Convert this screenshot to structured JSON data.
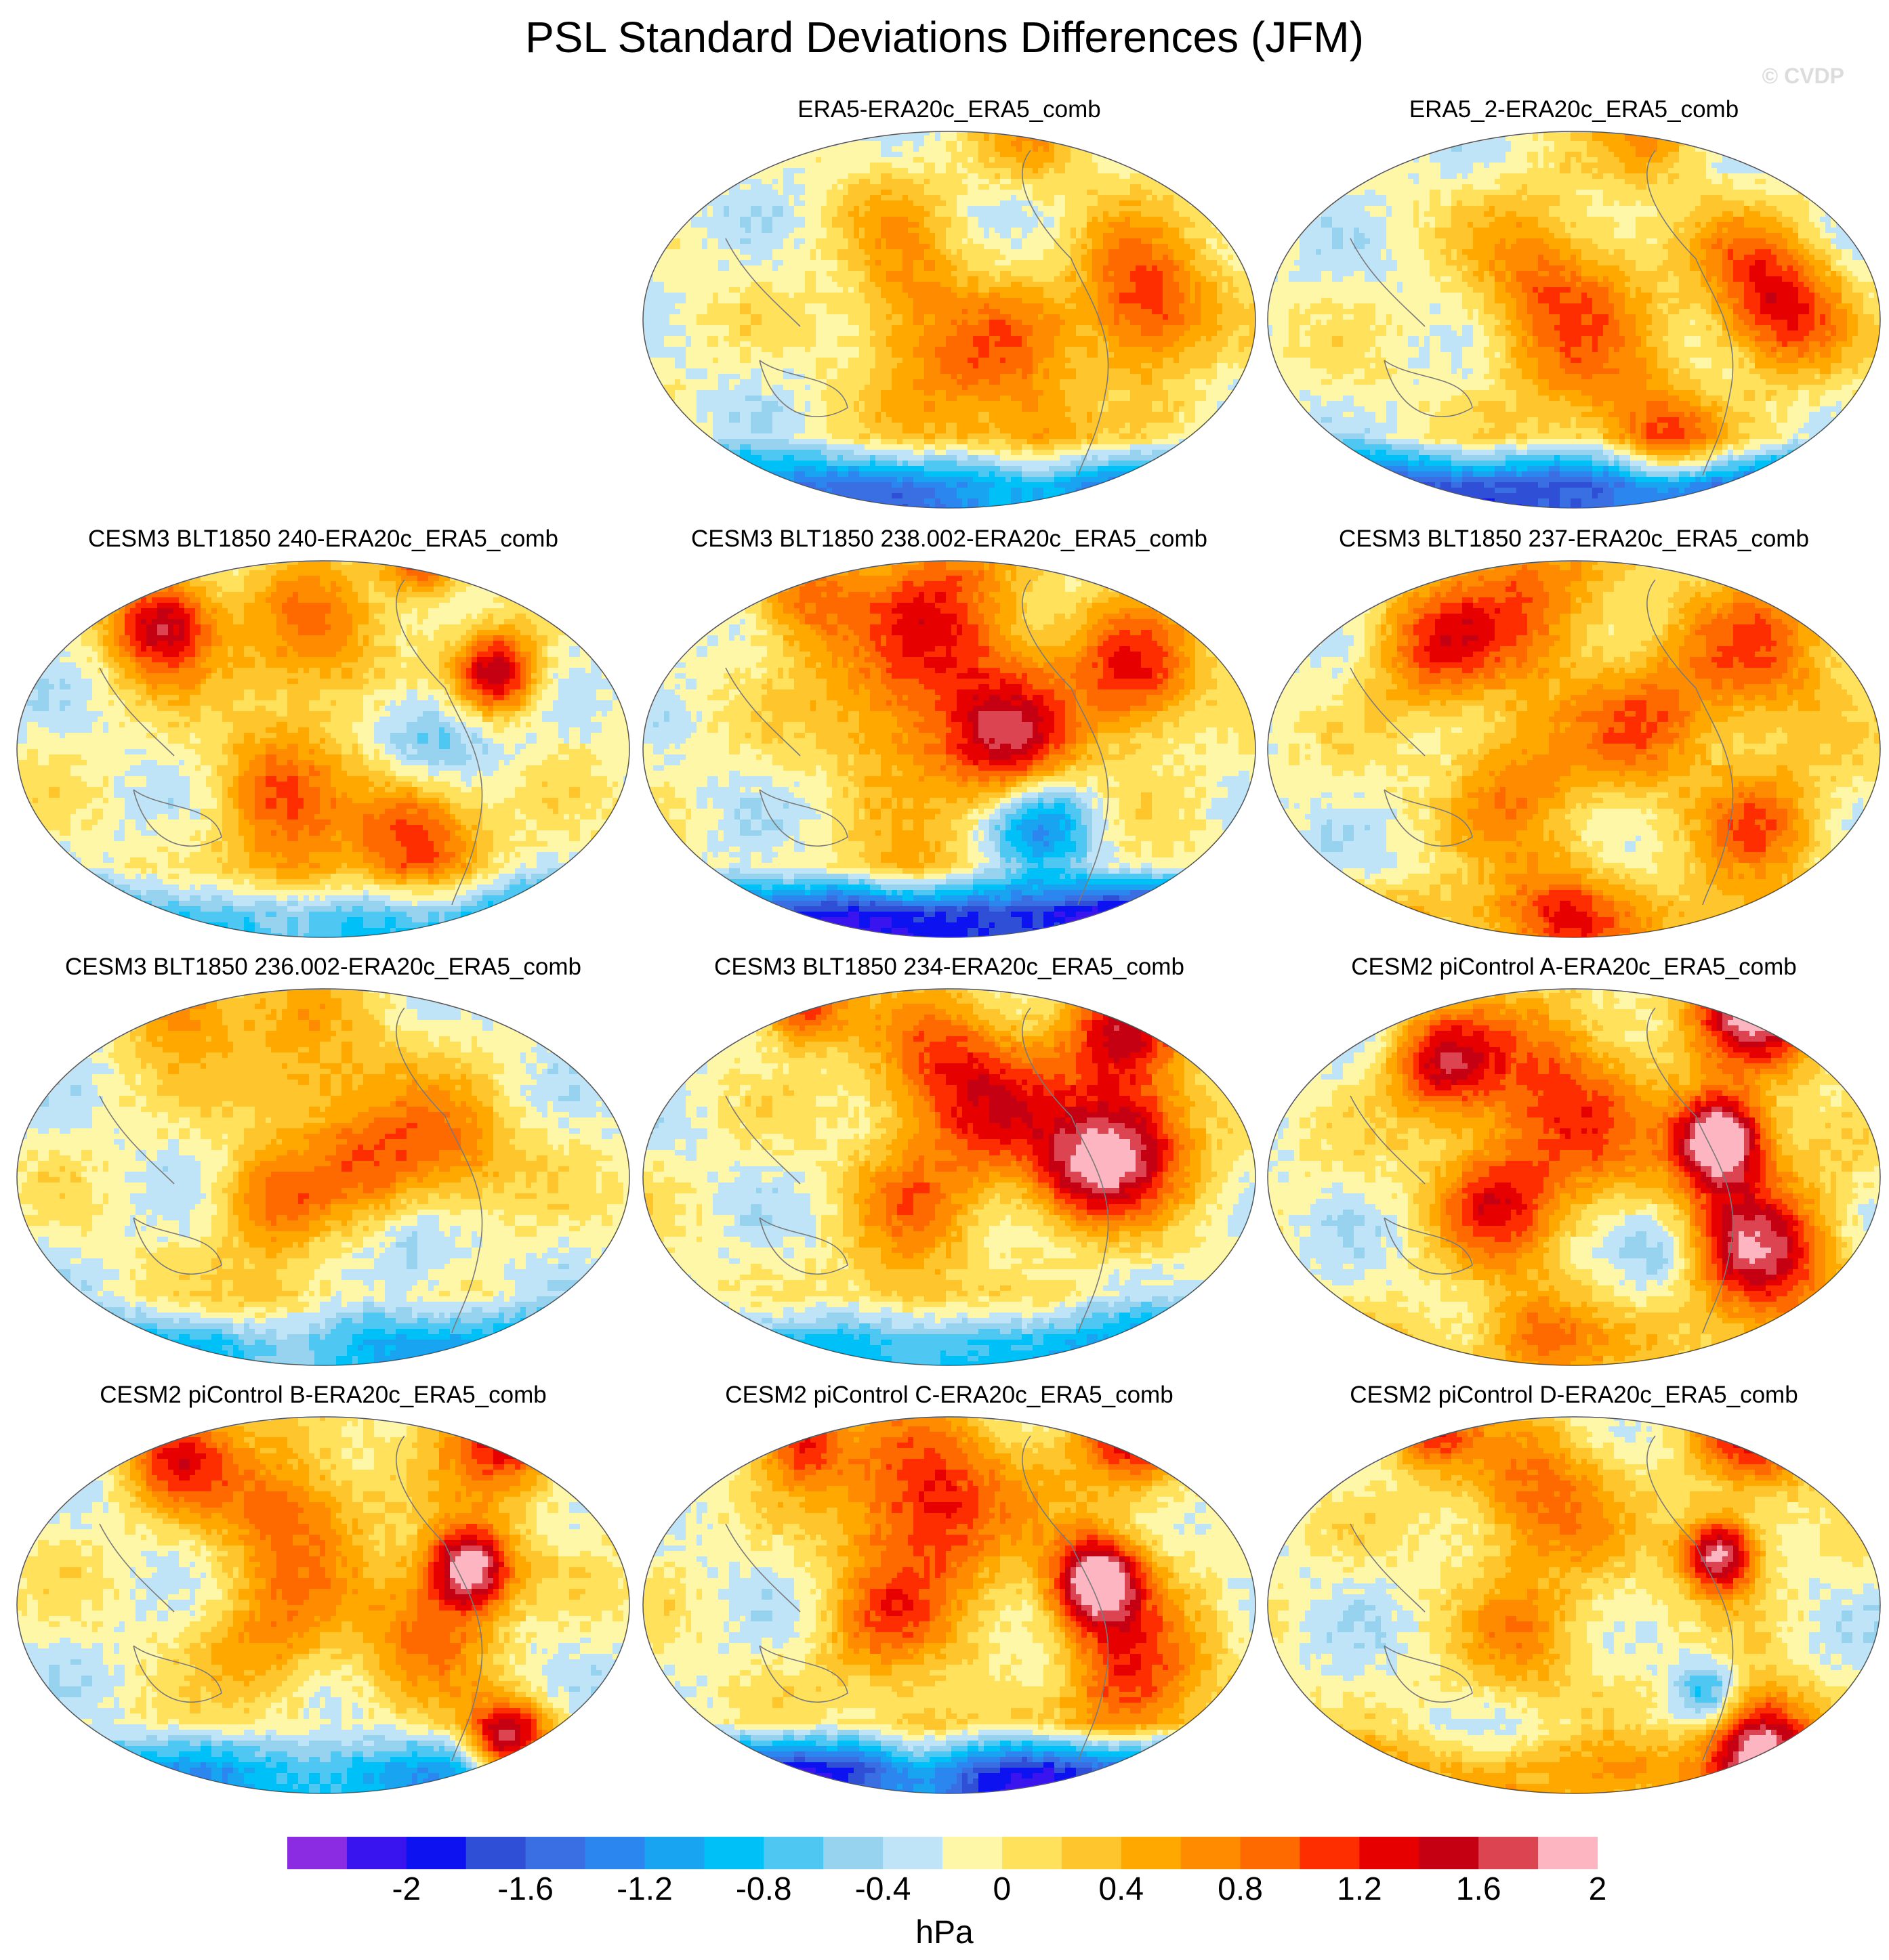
{
  "title": "PSL Standard Deviations Differences (JFM)",
  "watermark": "© CVDP",
  "panels": [
    {
      "label": "ERA5-ERA20c_ERA5_comb",
      "blobs": [
        [
          -10,
          150,
          30,
          1.4
        ],
        [
          20,
          45,
          30,
          0.5
        ],
        [
          55,
          20,
          40,
          0.6
        ],
        [
          -60,
          120,
          25,
          0.3
        ],
        [
          -70,
          -40,
          30,
          0.4
        ],
        [
          -140,
          60,
          25,
          0.6
        ],
        [
          100,
          70,
          25,
          0.6
        ],
        [
          20,
          -30,
          30,
          0.3
        ],
        [
          -20,
          -30,
          25,
          0.5
        ]
      ],
      "south": -1.3,
      "rough": 0.1
    },
    {
      "label": "ERA5_2-ERA20c_ERA5_comb",
      "blobs": [
        [
          -10,
          155,
          30,
          1.5
        ],
        [
          -30,
          15,
          30,
          0.6
        ],
        [
          55,
          20,
          40,
          0.6
        ],
        [
          -60,
          120,
          25,
          0.4
        ],
        [
          -70,
          -40,
          30,
          0.4
        ],
        [
          -150,
          60,
          25,
          0.7
        ],
        [
          100,
          70,
          25,
          1.0
        ],
        [
          20,
          -30,
          30,
          0.3
        ],
        [
          -20,
          -30,
          25,
          0.4
        ]
      ],
      "south": -1.6,
      "rough": 0.1
    },
    {
      "label": "CESM3 BLT1850 240-ERA20c_ERA5_comb",
      "blobs": [
        [
          -60,
          130,
          20,
          1.8
        ],
        [
          -150,
          75,
          18,
          1.4
        ],
        [
          -10,
          80,
          30,
          -0.8
        ],
        [
          60,
          70,
          30,
          1.4
        ],
        [
          -170,
          110,
          10,
          1.0
        ],
        [
          -90,
          -10,
          35,
          0.8
        ],
        [
          -100,
          -120,
          25,
          1.8
        ],
        [
          30,
          -40,
          30,
          0.8
        ],
        [
          110,
          -20,
          30,
          0.8
        ],
        [
          -30,
          10,
          40,
          0.2
        ]
      ],
      "south": -0.9,
      "rough": 0.1
    },
    {
      "label": "CESM3 BLT1850 238.002-ERA20c_ERA5_comb",
      "blobs": [
        [
          -60,
          140,
          30,
          1.4
        ],
        [
          0,
          50,
          30,
          1.2
        ],
        [
          60,
          70,
          25,
          -1.2
        ],
        [
          -170,
          110,
          10,
          1.2
        ],
        [
          -120,
          0,
          40,
          1.0
        ],
        [
          -30,
          10,
          50,
          0.6
        ],
        [
          -40,
          -50,
          35,
          0.6
        ],
        [
          110,
          -30,
          25,
          0.6
        ],
        [
          -120,
          -110,
          25,
          1.0
        ]
      ],
      "south": -1.9,
      "rough": 0.1
    },
    {
      "label": "CESM3 BLT1850 237-ERA20c_ERA5_comb",
      "blobs": [
        [
          -80,
          140,
          40,
          1.0
        ],
        [
          -170,
          110,
          10,
          1.6
        ],
        [
          60,
          140,
          30,
          1.0
        ],
        [
          -20,
          60,
          30,
          0.8
        ],
        [
          -120,
          -40,
          40,
          1.0
        ],
        [
          -80,
          -110,
          30,
          1.0
        ],
        [
          30,
          -50,
          30,
          0.8
        ],
        [
          120,
          -10,
          30,
          0.8
        ],
        [
          -20,
          10,
          40,
          0.3
        ]
      ],
      "south": 0.5,
      "rough": 0.1
    },
    {
      "label": "CESM3 BLT1850 236.002-ERA20c_ERA5_comb",
      "blobs": [
        [
          -20,
          100,
          30,
          0.8
        ],
        [
          -170,
          110,
          10,
          1.4
        ],
        [
          -90,
          -10,
          40,
          0.7
        ],
        [
          -140,
          -110,
          25,
          1.0
        ],
        [
          20,
          -40,
          25,
          0.8
        ],
        [
          -10,
          40,
          30,
          0.9
        ],
        [
          60,
          70,
          25,
          -0.5
        ],
        [
          110,
          -30,
          30,
          0.6
        ]
      ],
      "south": -0.9,
      "rough": 0.1
    },
    {
      "label": "CESM3 BLT1850 234-ERA20c_ERA5_comb",
      "blobs": [
        [
          -30,
          140,
          30,
          1.6
        ],
        [
          0,
          100,
          25,
          1.2
        ],
        [
          -120,
          130,
          30,
          1.4
        ],
        [
          -170,
          110,
          10,
          1.8
        ],
        [
          -50,
          40,
          40,
          1.0
        ],
        [
          -90,
          -10,
          35,
          0.9
        ],
        [
          -140,
          -110,
          20,
          1.5
        ],
        [
          20,
          -30,
          30,
          0.7
        ],
        [
          110,
          -30,
          30,
          0.6
        ]
      ],
      "south": -0.9,
      "rough": 0.1
    },
    {
      "label": "CESM2 piControl A-ERA20c_ERA5_comb",
      "blobs": [
        [
          -30,
          110,
          22,
          2.6
        ],
        [
          -140,
          140,
          30,
          2.2
        ],
        [
          60,
          140,
          35,
          1.8
        ],
        [
          -170,
          110,
          10,
          1.8
        ],
        [
          -80,
          -20,
          40,
          1.0
        ],
        [
          -90,
          -100,
          25,
          1.4
        ],
        [
          20,
          -60,
          30,
          1.2
        ],
        [
          120,
          -30,
          25,
          0.8
        ],
        [
          60,
          70,
          20,
          -0.6
        ],
        [
          -20,
          20,
          40,
          0.5
        ]
      ],
      "south": 0.3,
      "rough": 0.1
    },
    {
      "label": "CESM2 piControl B-ERA20c_ERA5_comb",
      "blobs": [
        [
          -30,
          110,
          20,
          2.2
        ],
        [
          -140,
          140,
          30,
          1.6
        ],
        [
          110,
          140,
          20,
          2.1
        ],
        [
          -170,
          100,
          10,
          1.8
        ],
        [
          -80,
          -30,
          35,
          1.0
        ],
        [
          -120,
          -110,
          25,
          1.2
        ],
        [
          30,
          -40,
          30,
          0.7
        ],
        [
          20,
          80,
          30,
          0.9
        ],
        [
          -20,
          10,
          45,
          0.2
        ]
      ],
      "south": -0.9,
      "rough": 0.1
    },
    {
      "label": "CESM2 piControl C-ERA20c_ERA5_comb",
      "blobs": [
        [
          -20,
          110,
          22,
          2.3
        ],
        [
          -140,
          140,
          30,
          1.6
        ],
        [
          60,
          140,
          35,
          1.4
        ],
        [
          -170,
          100,
          10,
          1.6
        ],
        [
          -90,
          -20,
          40,
          1.4
        ],
        [
          -130,
          -110,
          20,
          1.2
        ],
        [
          20,
          -50,
          30,
          0.8
        ],
        [
          120,
          -20,
          25,
          0.8
        ],
        [
          60,
          70,
          20,
          -0.4
        ],
        [
          -20,
          10,
          45,
          0.3
        ]
      ],
      "south": -1.8,
      "rough": 0.1
    },
    {
      "label": "CESM2 piControl D-ERA20c_ERA5_comb",
      "blobs": [
        [
          -40,
          110,
          18,
          2.1
        ],
        [
          -140,
          140,
          30,
          1.4
        ],
        [
          110,
          140,
          25,
          2.1
        ],
        [
          -170,
          100,
          10,
          1.4
        ],
        [
          -90,
          -30,
          35,
          1.0
        ],
        [
          -140,
          -110,
          20,
          1.2
        ],
        [
          30,
          -40,
          30,
          0.6
        ],
        [
          70,
          100,
          15,
          -0.9
        ],
        [
          -20,
          10,
          45,
          0.2
        ]
      ],
      "south": 0.6,
      "rough": 0.1
    }
  ],
  "colorbar": {
    "units": "hPa",
    "labels": [
      "-2",
      "-1.6",
      "-1.2",
      "-0.8",
      "-0.4",
      "0",
      "0.4",
      "0.8",
      "1.2",
      "1.6",
      "2"
    ],
    "levels": [
      -2.2,
      -2.0,
      -1.8,
      -1.6,
      -1.4,
      -1.2,
      -1.0,
      -0.8,
      -0.6,
      -0.4,
      -0.2,
      0,
      0.2,
      0.4,
      0.6,
      0.8,
      1.0,
      1.2,
      1.4,
      1.6,
      1.8,
      2.0
    ],
    "colors": [
      "#8b2be2",
      "#3a14ee",
      "#0c12f0",
      "#2e4fd6",
      "#3a6fe3",
      "#2b86ef",
      "#19a4f2",
      "#00c0f8",
      "#4fc7f3",
      "#97d3ee",
      "#bfe4f7",
      "#fff7a8",
      "#ffe15c",
      "#ffc52c",
      "#ffa800",
      "#ff8c00",
      "#ff6a00",
      "#ff2e00",
      "#e60000",
      "#c40012",
      "#dd4451",
      "#fdb6c1"
    ]
  }
}
